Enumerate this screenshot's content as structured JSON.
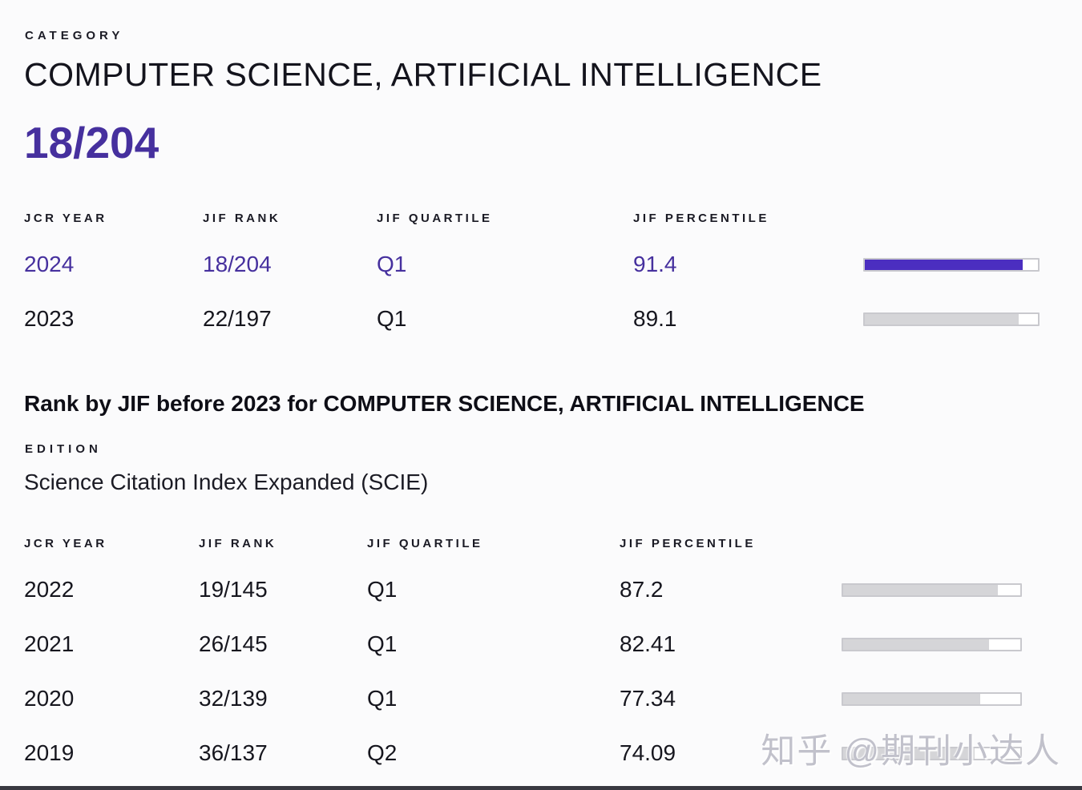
{
  "colors": {
    "accent": "#4b2ec0",
    "accent_text": "#46309e",
    "bar_gray": "#d5d5d8"
  },
  "header": {
    "category_label": "CATEGORY",
    "category_value": "COMPUTER SCIENCE, ARTIFICIAL INTELLIGENCE",
    "current_rank": "18/204"
  },
  "table1": {
    "headers": {
      "year": "JCR YEAR",
      "rank": "JIF RANK",
      "quartile": "JIF QUARTILE",
      "percentile": "JIF PERCENTILE"
    },
    "rows": [
      {
        "year": "2024",
        "rank": "18/204",
        "quartile": "Q1",
        "percentile": "91.4",
        "bar_percent": 91.4,
        "highlight": true
      },
      {
        "year": "2023",
        "rank": "22/197",
        "quartile": "Q1",
        "percentile": "89.1",
        "bar_percent": 89.1,
        "highlight": false
      }
    ]
  },
  "section2": {
    "title": "Rank by JIF before 2023 for COMPUTER SCIENCE, ARTIFICIAL INTELLIGENCE",
    "edition_label": "EDITION",
    "edition_value": "Science Citation Index Expanded (SCIE)"
  },
  "table2": {
    "headers": {
      "year": "JCR YEAR",
      "rank": "JIF RANK",
      "quartile": "JIF QUARTILE",
      "percentile": "JIF PERCENTILE"
    },
    "rows": [
      {
        "year": "2022",
        "rank": "19/145",
        "quartile": "Q1",
        "percentile": "87.2",
        "bar_percent": 87.2
      },
      {
        "year": "2021",
        "rank": "26/145",
        "quartile": "Q1",
        "percentile": "82.41",
        "bar_percent": 82.41
      },
      {
        "year": "2020",
        "rank": "32/139",
        "quartile": "Q1",
        "percentile": "77.34",
        "bar_percent": 77.34
      },
      {
        "year": "2019",
        "rank": "36/137",
        "quartile": "Q2",
        "percentile": "74.09",
        "bar_percent": 74.09
      }
    ]
  },
  "watermark": "知乎 @期刊小达人"
}
